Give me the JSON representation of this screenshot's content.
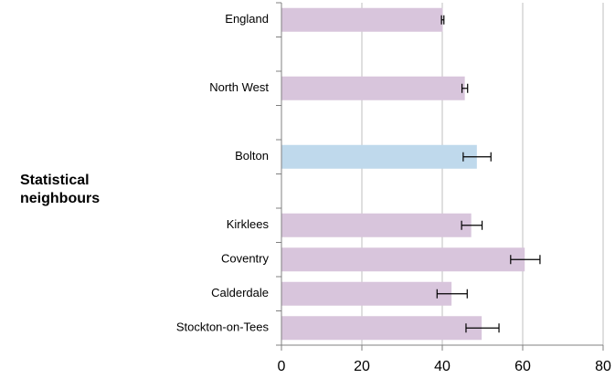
{
  "chart_data": {
    "type": "bar",
    "orientation": "horizontal",
    "annotation": "Statistical neighbours",
    "categories": [
      "England",
      null,
      "North West",
      null,
      "Bolton",
      null,
      "Kirklees",
      "Coventry",
      "Calderdale",
      "Stockton-on-Tees"
    ],
    "values": [
      40.1,
      null,
      45.6,
      null,
      48.6,
      null,
      47.2,
      60.5,
      42.3,
      49.8
    ],
    "ci_lower": [
      39.8,
      null,
      44.9,
      null,
      45.2,
      null,
      44.8,
      57.0,
      38.7,
      45.9
    ],
    "ci_upper": [
      40.4,
      null,
      46.3,
      null,
      52.1,
      null,
      49.9,
      64.3,
      46.2,
      54.1
    ],
    "colors": [
      "#d8c5dc",
      null,
      "#d8c5dc",
      null,
      "#bfd9ec",
      null,
      "#d8c5dc",
      "#d8c5dc",
      "#d8c5dc",
      "#d8c5dc"
    ],
    "xlim": [
      0,
      80
    ],
    "xticks": [
      0,
      20,
      40,
      60,
      80
    ],
    "grid": true
  }
}
